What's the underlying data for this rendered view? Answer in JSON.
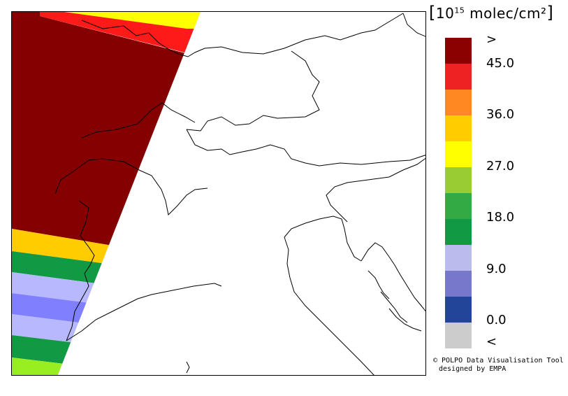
{
  "legend": {
    "unit_prefix": "[",
    "unit_main": "10",
    "unit_exp": "15",
    "unit_rest": " molec/cm²",
    "unit_suffix": "]",
    "colors": [
      "#8b0000",
      "#ee2222",
      "#ff8822",
      "#ffcc00",
      "#ffff00",
      "#99cc33",
      "#33aa44",
      "#119944",
      "#bbbbee",
      "#7777cc",
      "#224499",
      "#cccccc"
    ],
    "labels": [
      ">",
      "45.0",
      "36.0",
      "27.0",
      "18.0",
      "9.0",
      "0.0",
      "<"
    ]
  },
  "credit": {
    "line1": "© POLPO Data Visualisation Tool",
    "line2": "designed by EMPA"
  },
  "swath_colors": {
    "dark_red": "#850000",
    "red": "#ff1a1a",
    "yellow": "#ffff00",
    "orange": "#ffcc00",
    "green": "#119944",
    "lavender": "#b8b8ff",
    "blue": "#8080ff",
    "lime": "#99ee22"
  }
}
